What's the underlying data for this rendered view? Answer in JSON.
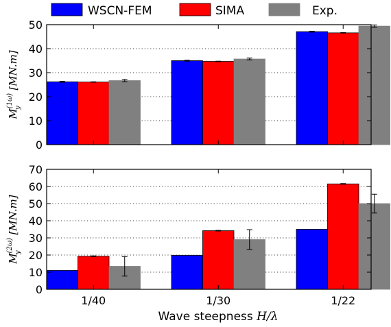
{
  "legend": {
    "items": [
      {
        "label": "WSCN-FEM",
        "color": "#0000ff"
      },
      {
        "label": "SIMA",
        "color": "#ff0000"
      },
      {
        "label": "Exp.",
        "color": "#808080"
      }
    ]
  },
  "xlabel": {
    "text": "Wave steepness ",
    "math": "H/λ"
  },
  "chart_data": [
    {
      "type": "bar",
      "ylabel": {
        "text": "M",
        "sub": "y",
        "sup": "(1ω)",
        "unit": " [MN.m]"
      },
      "ylim": [
        0,
        50
      ],
      "yticks": [
        0,
        10,
        20,
        30,
        40,
        50
      ],
      "grid": "horizontal-dotted",
      "categories": [
        "1/40",
        "1/30",
        "1/22"
      ],
      "series": [
        {
          "name": "WSCN-FEM",
          "values": [
            26.2,
            35.0,
            47.1
          ],
          "errors": [
            0.2,
            0.2,
            0.2
          ]
        },
        {
          "name": "SIMA",
          "values": [
            26.1,
            34.7,
            46.6
          ],
          "errors": [
            0.1,
            0.1,
            0.1
          ]
        },
        {
          "name": "Exp.",
          "values": [
            26.7,
            35.7,
            49.4
          ],
          "errors": [
            0.5,
            0.4,
            0.5
          ]
        }
      ]
    },
    {
      "type": "bar",
      "ylabel": {
        "text": "M",
        "sub": "y",
        "sup": "(2ω)",
        "unit": " [MN.m]"
      },
      "ylim": [
        0,
        70
      ],
      "yticks": [
        0,
        10,
        20,
        30,
        40,
        50,
        60,
        70
      ],
      "grid": "horizontal-dotted",
      "categories": [
        "1/40",
        "1/30",
        "1/22"
      ],
      "series": [
        {
          "name": "WSCN-FEM",
          "values": [
            11.0,
            19.8,
            35.0
          ],
          "errors": [
            0.0,
            0.0,
            0.0
          ]
        },
        {
          "name": "SIMA",
          "values": [
            19.3,
            34.2,
            61.5
          ],
          "errors": [
            0.2,
            0.2,
            0.2
          ]
        },
        {
          "name": "Exp.",
          "values": [
            13.4,
            29.0,
            50.0
          ],
          "errors": [
            5.7,
            5.8,
            5.5
          ]
        }
      ]
    }
  ]
}
